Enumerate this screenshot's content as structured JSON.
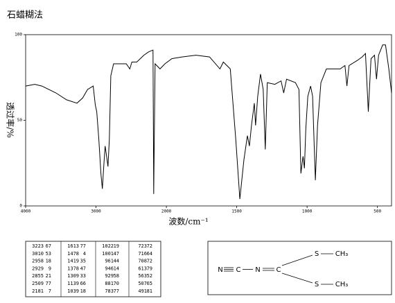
{
  "chart_data": {
    "type": "line",
    "title": "石蜡糊法",
    "xlabel": "波数/cm⁻¹",
    "ylabel": "透过率/%",
    "color": "#000000",
    "x": [
      4000,
      3870,
      3770,
      3570,
      3420,
      3270,
      3190,
      3120,
      3040,
      3010,
      2990,
      2960,
      2930,
      2910,
      2890,
      2870,
      2850,
      2830,
      2810,
      2790,
      2750,
      2670,
      2570,
      2520,
      2490,
      2420,
      2320,
      2250,
      2190,
      2180,
      2160,
      2090,
      2020,
      1961,
      1888,
      1790,
      1693,
      1619,
      1595,
      1546,
      1507,
      1478,
      1449,
      1424,
      1410,
      1395,
      1375,
      1366,
      1351,
      1331,
      1312,
      1297,
      1283,
      1229,
      1185,
      1166,
      1146,
      1083,
      1058,
      1044,
      1029,
      1019,
      1009,
      995,
      975,
      961,
      951,
      941,
      926,
      902,
      863,
      814,
      765,
      731,
      717,
      702,
      643,
      609,
      585,
      565,
      546,
      521,
      507,
      492,
      463,
      443,
      419,
      400
    ],
    "values": [
      70,
      71,
      70,
      66,
      62,
      60,
      63,
      68,
      70,
      59,
      55,
      39,
      19,
      10,
      23,
      35,
      29,
      23,
      39,
      76,
      83,
      83,
      83,
      80,
      84,
      84,
      88,
      90,
      91,
      7,
      83,
      80,
      83,
      86,
      87,
      88,
      87,
      80,
      84,
      80,
      39,
      4,
      27,
      41,
      35,
      47,
      60,
      47,
      64,
      77,
      68,
      33,
      72,
      71,
      73,
      66,
      74,
      72,
      68,
      19,
      29,
      22,
      45,
      64,
      70,
      64,
      39,
      15,
      47,
      72,
      80,
      80,
      80,
      82,
      70,
      82,
      85,
      87,
      89,
      55,
      86,
      88,
      74,
      88,
      94,
      94,
      80,
      66
    ],
    "xlim": [
      4000,
      400
    ],
    "x_scale_change_at": 2000,
    "x_expansion_below": 2,
    "xticks": [
      4000,
      3000,
      2000,
      1500,
      1000,
      500
    ],
    "ylim": [
      0,
      100
    ],
    "yticks": [
      0,
      50,
      100
    ]
  },
  "peak_table": {
    "rows": [
      [
        3223,
        67,
        1613,
        77,
        1022,
        19,
        723,
        72
      ],
      [
        3010,
        53,
        1478,
        4,
        1001,
        47,
        716,
        64
      ],
      [
        2958,
        18,
        1419,
        35,
        961,
        44,
        708,
        72
      ],
      [
        2929,
        9,
        1378,
        47,
        946,
        14,
        613,
        79
      ],
      [
        2855,
        21,
        1309,
        33,
        929,
        58,
        563,
        52
      ],
      [
        2509,
        77,
        1139,
        66,
        881,
        70,
        507,
        65
      ],
      [
        2181,
        7,
        1039,
        18,
        783,
        77,
        491,
        81
      ]
    ]
  },
  "structure": {
    "atoms": [
      "N",
      "C",
      "N",
      "C",
      "S",
      "CH₃",
      "S",
      "CH₃"
    ]
  }
}
